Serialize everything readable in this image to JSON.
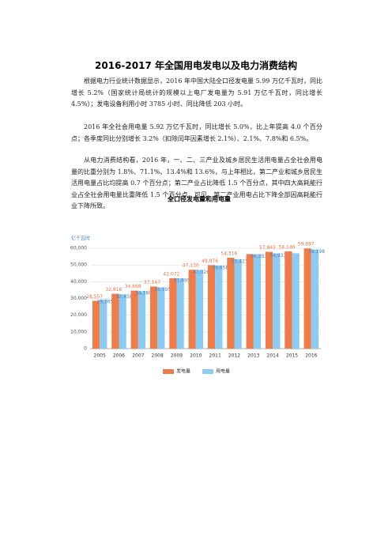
{
  "title": "2016-2017 年全国用电发电以及电力消费结构",
  "paragraphs": [
    "根据电力行业统计数据显示，2016 年中国大陆全口径发电量 5.99 万亿千瓦时，同比增长 5.2%（国家统计局统计的规模以上电厂发电量为 5.91 万亿千瓦时，同比增长 4.5%）；发电设备利用小时 3785 小时、同比降低 203 小时。",
    "2016 年全社会用电量 5.92 万亿千瓦时，同比增长 5.0%，比上年提高 4.0 个百分点；各季度同比分别增长 3.2%（扣除闰年因素增长 2.1%）、2.1%、7.8%和 6.5%。",
    "从电力消费结构看，2016 年，一、二、三产业及城乡居民生活用电量占全社会用电量的比重分别为 1.8%、71.1%、13.4%和 13.6%，与上年相比，第二产业和城乡居民生活用电量占比均提高 0.7 个百分点；第二产业占比降低 1.5 个百分点，其中四大高耗能行业占全社会用电量比重降低 1.5 个百分点，可见，第二产业用电占比下降全部因高耗能行业下降所致。"
  ],
  "chart_data": {
    "type": "bar",
    "title": "全口径发电量和用电量",
    "y_label": "亿千瓦时",
    "categories": [
      "2005",
      "2006",
      "2007",
      "2008",
      "2009",
      "2010",
      "2011",
      "2012",
      "2013",
      "2014",
      "2015",
      "2016"
    ],
    "series": [
      {
        "name": "发电量",
        "color": "#ed7d4a",
        "values": [
          28557,
          32816,
          34668,
          37147,
          42072,
          47130,
          49876,
          54316,
          56500,
          57845,
          58146,
          59897
        ],
        "value_labels": [
          "28,557",
          "32,816",
          "34,668",
          "37,147",
          "42,072",
          "47,130",
          "49,876",
          "54,316",
          null,
          "57,845",
          "58,146",
          "59,897"
        ]
      },
      {
        "name": "用电量",
        "color": "#8ecbf0",
        "values": [
          29365,
          32458,
          34380,
          36595,
          41999,
          47026,
          49658,
          53423,
          56393,
          56933,
          57000,
          59198
        ],
        "value_labels": [
          "29,365",
          "32,458",
          "34,380",
          "36,595",
          "41,999",
          "47,026",
          "49,658",
          "53,423",
          "56,393",
          "56,933",
          null,
          "59,198"
        ]
      }
    ],
    "ylim": [
      0,
      60000
    ],
    "yticks": [
      0,
      {
        "value": 10000,
        "label": "10,000"
      },
      {
        "value": 20000,
        "label": "20,000"
      },
      {
        "value": 30000,
        "label": "30,000"
      },
      {
        "value": 40000,
        "label": "40,000"
      },
      {
        "value": 50000,
        "label": "50,000"
      },
      {
        "value": 60000,
        "label": "60,000"
      }
    ],
    "grid": true,
    "legend": "bottom"
  }
}
